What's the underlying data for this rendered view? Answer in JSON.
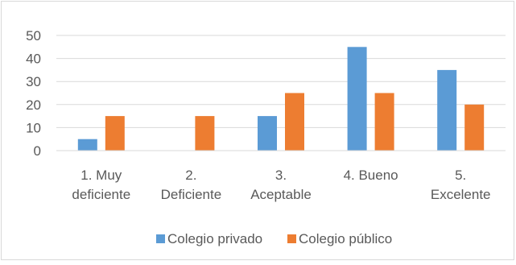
{
  "chart_data": {
    "type": "bar",
    "categories": [
      [
        "1. Muy",
        "deficiente"
      ],
      [
        "2.",
        "Deficiente"
      ],
      [
        "3.",
        "Aceptable"
      ],
      [
        "4. Bueno"
      ],
      [
        "5.",
        "Excelente"
      ]
    ],
    "series": [
      {
        "name": "Colegio privado",
        "color": "#5b9bd5",
        "values": [
          5,
          0,
          15,
          45,
          35
        ]
      },
      {
        "name": "Colegio público",
        "color": "#ed7d31",
        "values": [
          15,
          15,
          25,
          25,
          20
        ]
      }
    ],
    "ylim": [
      0,
      50
    ],
    "yticks": [
      "0",
      "10",
      "20",
      "30",
      "40",
      "50"
    ],
    "grid": true,
    "legend_position": "bottom"
  }
}
